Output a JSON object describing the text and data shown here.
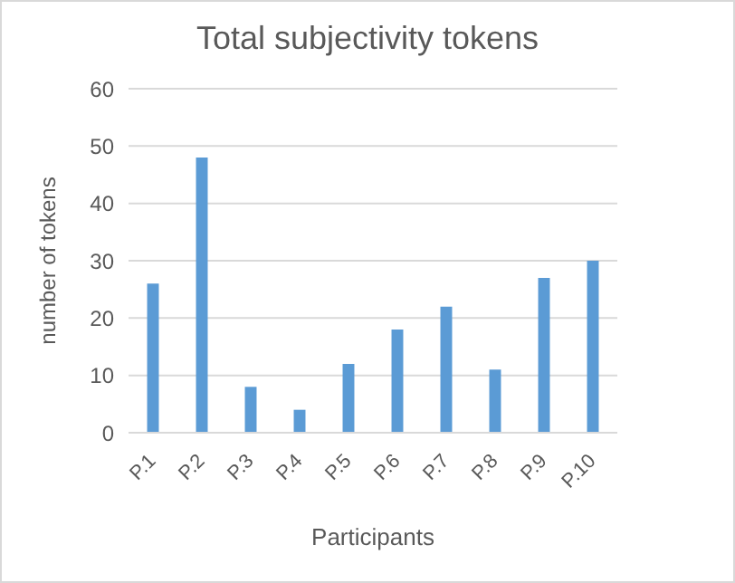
{
  "chart_data": {
    "type": "bar",
    "title": "Total subjectivity tokens",
    "xlabel": "Participants",
    "ylabel": "number of tokens",
    "categories": [
      "P.1",
      "P.2",
      "P.3",
      "P.4",
      "P.5",
      "P.6",
      "P.7",
      "P.8",
      "P.9",
      "P.10"
    ],
    "values": [
      26,
      48,
      8,
      4,
      12,
      18,
      22,
      11,
      27,
      30
    ],
    "color": "#5b9bd5",
    "ylim": [
      0,
      60
    ],
    "yticks": [
      0,
      10,
      20,
      30,
      40,
      50,
      60
    ],
    "grid": "y"
  }
}
